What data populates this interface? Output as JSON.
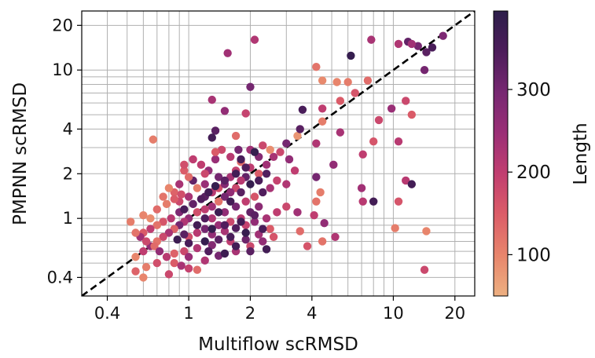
{
  "chart_data": {
    "type": "scatter",
    "xlabel": "Multiflow scRMSD",
    "ylabel": "PMPNN scRMSD",
    "xscale": "log",
    "yscale": "log",
    "xlim": [
      0.3,
      25
    ],
    "ylim": [
      0.3,
      25
    ],
    "grid": true,
    "x_ticks": [
      0.4,
      1,
      2,
      4,
      10,
      20
    ],
    "x_tick_labels": [
      "0.4",
      "1",
      "2",
      "4",
      "10",
      "20"
    ],
    "y_ticks": [
      0.4,
      1,
      2,
      4,
      10,
      20
    ],
    "y_tick_labels": [
      "0.4",
      "1",
      "2",
      "4",
      "10",
      "20"
    ],
    "reference_line": {
      "type": "y=x",
      "style": "dashed",
      "color": "#000000"
    },
    "colorbar": {
      "label": "Length",
      "min": 50,
      "max": 395,
      "ticks": [
        100,
        200,
        300
      ],
      "tick_labels": [
        "100",
        "200",
        "300"
      ],
      "colormap": [
        "#edb081",
        "#e8866c",
        "#db5c68",
        "#c13e70",
        "#9b2f76",
        "#782872",
        "#4c1d5a",
        "#2d1e4a"
      ]
    },
    "points": [
      [
        14.5,
        13.2,
        330
      ],
      [
        11.8,
        15.5,
        320
      ],
      [
        13.2,
        14.5,
        300
      ],
      [
        15.5,
        14.2,
        350
      ],
      [
        17.5,
        17.0,
        290
      ],
      [
        12.3,
        15.0,
        240
      ],
      [
        7.8,
        16.0,
        230
      ],
      [
        10.6,
        15.0,
        220
      ],
      [
        6.2,
        12.5,
        380
      ],
      [
        14.2,
        10.0,
        300
      ],
      [
        2.1,
        16.0,
        220
      ],
      [
        1.55,
        13.0,
        240
      ],
      [
        4.2,
        10.5,
        120
      ],
      [
        4.5,
        8.5,
        95
      ],
      [
        5.3,
        8.3,
        100
      ],
      [
        6.0,
        8.3,
        110
      ],
      [
        7.5,
        8.5,
        130
      ],
      [
        6.5,
        7.0,
        160
      ],
      [
        5.5,
        6.2,
        150
      ],
      [
        4.5,
        5.5,
        200
      ],
      [
        3.6,
        5.4,
        350
      ],
      [
        4.5,
        4.5,
        110
      ],
      [
        5.5,
        3.8,
        230
      ],
      [
        4.2,
        3.2,
        220
      ],
      [
        3.4,
        3.6,
        80
      ],
      [
        11.5,
        6.2,
        180
      ],
      [
        8.5,
        4.6,
        180
      ],
      [
        12.3,
        5.0,
        150
      ],
      [
        10.6,
        3.3,
        210
      ],
      [
        9.8,
        5.5,
        250
      ],
      [
        8.0,
        3.3,
        160
      ],
      [
        2.0,
        7.7,
        300
      ],
      [
        1.5,
        5.3,
        260
      ],
      [
        1.9,
        5.1,
        190
      ],
      [
        1.3,
        6.3,
        230
      ],
      [
        1.7,
        3.6,
        130
      ],
      [
        1.35,
        3.9,
        330
      ],
      [
        1.3,
        3.5,
        360
      ],
      [
        0.67,
        3.4,
        110
      ],
      [
        7.1,
        2.7,
        200
      ],
      [
        5.1,
        2.3,
        260
      ],
      [
        4.2,
        1.9,
        300
      ],
      [
        3.3,
        2.1,
        200
      ],
      [
        3.0,
        1.7,
        220
      ],
      [
        4.4,
        1.5,
        110
      ],
      [
        7.0,
        1.6,
        240
      ],
      [
        8.0,
        1.3,
        360
      ],
      [
        7.1,
        1.3,
        210
      ],
      [
        10.6,
        1.3,
        160
      ],
      [
        11.5,
        1.8,
        210
      ],
      [
        12.3,
        1.7,
        360
      ],
      [
        4.2,
        1.3,
        120
      ],
      [
        3.4,
        1.1,
        240
      ],
      [
        4.1,
        1.05,
        200
      ],
      [
        4.6,
        0.93,
        260
      ],
      [
        10.2,
        0.86,
        110
      ],
      [
        3.5,
        0.82,
        130
      ],
      [
        4.5,
        0.7,
        120
      ],
      [
        3.8,
        0.65,
        160
      ],
      [
        14.5,
        0.82,
        100
      ],
      [
        14.2,
        0.45,
        180
      ],
      [
        5.2,
        0.75,
        220
      ],
      [
        3.5,
        4.0,
        330
      ],
      [
        3.0,
        3.2,
        300
      ],
      [
        2.8,
        2.8,
        180
      ],
      [
        3.1,
        2.5,
        260
      ],
      [
        2.6,
        2.6,
        230
      ],
      [
        2.5,
        2.9,
        90
      ],
      [
        2.2,
        2.6,
        280
      ],
      [
        2.0,
        2.2,
        200
      ],
      [
        2.2,
        2.0,
        150
      ],
      [
        2.4,
        2.3,
        240
      ],
      [
        1.9,
        1.9,
        320
      ],
      [
        1.8,
        1.8,
        210
      ],
      [
        1.7,
        1.6,
        180
      ],
      [
        1.6,
        1.5,
        260
      ],
      [
        1.5,
        1.4,
        300
      ],
      [
        1.4,
        1.3,
        120
      ],
      [
        1.3,
        1.2,
        240
      ],
      [
        1.2,
        1.15,
        200
      ],
      [
        1.1,
        1.1,
        170
      ],
      [
        1.0,
        1.0,
        260
      ],
      [
        0.95,
        0.95,
        220
      ],
      [
        0.9,
        0.9,
        300
      ],
      [
        0.85,
        0.85,
        140
      ],
      [
        0.8,
        0.8,
        230
      ],
      [
        0.75,
        0.75,
        180
      ],
      [
        0.7,
        0.7,
        120
      ],
      [
        0.65,
        0.65,
        260
      ],
      [
        0.6,
        0.6,
        200
      ],
      [
        0.55,
        0.55,
        100
      ],
      [
        1.2,
        1.4,
        330
      ],
      [
        1.3,
        1.5,
        210
      ],
      [
        1.4,
        1.6,
        170
      ],
      [
        1.5,
        1.7,
        280
      ],
      [
        1.6,
        1.9,
        230
      ],
      [
        1.7,
        2.1,
        190
      ],
      [
        1.8,
        2.4,
        130
      ],
      [
        1.4,
        1.9,
        300
      ],
      [
        1.2,
        1.7,
        250
      ],
      [
        1.1,
        1.6,
        110
      ],
      [
        1.0,
        1.4,
        230
      ],
      [
        0.9,
        1.3,
        180
      ],
      [
        0.85,
        1.5,
        140
      ],
      [
        1.05,
        1.8,
        320
      ],
      [
        1.25,
        2.1,
        260
      ],
      [
        1.15,
        2.3,
        200
      ],
      [
        0.95,
        2.1,
        150
      ],
      [
        1.35,
        2.5,
        250
      ],
      [
        1.6,
        2.6,
        210
      ],
      [
        1.45,
        2.9,
        180
      ],
      [
        1.75,
        2.9,
        300
      ],
      [
        2.0,
        2.9,
        240
      ],
      [
        2.3,
        3.1,
        180
      ],
      [
        1.3,
        1.0,
        220
      ],
      [
        1.5,
        1.1,
        260
      ],
      [
        1.7,
        1.2,
        300
      ],
      [
        1.9,
        1.3,
        200
      ],
      [
        2.1,
        1.4,
        160
      ],
      [
        2.3,
        1.5,
        340
      ],
      [
        2.5,
        1.6,
        230
      ],
      [
        2.7,
        1.8,
        190
      ],
      [
        2.2,
        1.2,
        270
      ],
      [
        2.0,
        1.1,
        320
      ],
      [
        1.8,
        1.0,
        210
      ],
      [
        1.6,
        0.95,
        180
      ],
      [
        1.4,
        0.9,
        250
      ],
      [
        1.2,
        0.85,
        300
      ],
      [
        1.1,
        0.8,
        210
      ],
      [
        1.0,
        0.75,
        170
      ],
      [
        1.3,
        0.78,
        260
      ],
      [
        1.5,
        0.82,
        230
      ],
      [
        1.7,
        0.86,
        340
      ],
      [
        1.9,
        0.9,
        190
      ],
      [
        2.1,
        0.95,
        260
      ],
      [
        2.4,
        1.0,
        230
      ],
      [
        2.7,
        1.1,
        200
      ],
      [
        3.0,
        1.2,
        180
      ],
      [
        2.5,
        0.85,
        150
      ],
      [
        2.2,
        0.78,
        240
      ],
      [
        1.9,
        0.72,
        310
      ],
      [
        1.6,
        0.7,
        200
      ],
      [
        1.3,
        0.66,
        280
      ],
      [
        1.1,
        0.63,
        220
      ],
      [
        0.95,
        0.6,
        180
      ],
      [
        0.85,
        0.58,
        140
      ],
      [
        1.0,
        0.55,
        250
      ],
      [
        1.2,
        0.52,
        220
      ],
      [
        1.4,
        0.56,
        300
      ],
      [
        1.7,
        0.6,
        230
      ],
      [
        2.0,
        0.65,
        180
      ],
      [
        2.3,
        0.7,
        260
      ],
      [
        2.6,
        0.75,
        160
      ],
      [
        0.9,
        1.1,
        290
      ],
      [
        0.82,
        1.0,
        210
      ],
      [
        0.75,
        0.95,
        160
      ],
      [
        0.7,
        0.9,
        120
      ],
      [
        0.65,
        0.85,
        200
      ],
      [
        0.6,
        0.8,
        150
      ],
      [
        0.58,
        0.75,
        240
      ],
      [
        0.62,
        0.7,
        180
      ],
      [
        0.68,
        0.65,
        130
      ],
      [
        0.72,
        0.6,
        260
      ],
      [
        0.78,
        0.55,
        210
      ],
      [
        0.85,
        0.5,
        150
      ],
      [
        0.92,
        0.48,
        230
      ],
      [
        1.0,
        0.46,
        190
      ],
      [
        1.1,
        0.45,
        130
      ],
      [
        0.7,
        0.5,
        170
      ],
      [
        0.62,
        0.47,
        110
      ],
      [
        0.55,
        0.44,
        140
      ],
      [
        0.6,
        0.4,
        100
      ],
      [
        0.8,
        0.42,
        180
      ],
      [
        0.65,
        1.0,
        90
      ],
      [
        0.6,
        1.05,
        100
      ],
      [
        0.7,
        1.15,
        130
      ],
      [
        0.78,
        1.25,
        110
      ],
      [
        0.85,
        1.35,
        150
      ],
      [
        0.92,
        1.45,
        170
      ],
      [
        0.75,
        1.4,
        120
      ],
      [
        0.8,
        1.6,
        100
      ],
      [
        0.9,
        1.7,
        230
      ],
      [
        1.0,
        1.9,
        130
      ],
      [
        1.05,
        2.5,
        200
      ],
      [
        1.35,
        2.8,
        150
      ],
      [
        1.2,
        2.0,
        180
      ],
      [
        0.95,
        2.3,
        170
      ],
      [
        0.55,
        0.8,
        120
      ],
      [
        0.52,
        0.95,
        110
      ],
      [
        1.8,
        2.5,
        350
      ],
      [
        2.1,
        2.8,
        380
      ],
      [
        1.9,
        2.2,
        340
      ],
      [
        1.7,
        2.0,
        360
      ],
      [
        1.5,
        1.8,
        330
      ],
      [
        1.35,
        1.65,
        380
      ],
      [
        1.25,
        1.5,
        360
      ],
      [
        1.15,
        1.35,
        340
      ],
      [
        1.05,
        1.25,
        320
      ],
      [
        0.95,
        1.15,
        350
      ],
      [
        1.6,
        1.3,
        360
      ],
      [
        1.8,
        1.5,
        330
      ],
      [
        2.0,
        1.7,
        380
      ],
      [
        2.2,
        1.8,
        350
      ],
      [
        2.4,
        2.0,
        340
      ],
      [
        1.4,
        1.1,
        370
      ],
      [
        1.2,
        1.0,
        340
      ],
      [
        1.1,
        0.9,
        360
      ],
      [
        1.3,
        0.85,
        380
      ],
      [
        1.5,
        0.9,
        340
      ],
      [
        1.8,
        0.95,
        360
      ],
      [
        2.1,
        1.05,
        330
      ],
      [
        1.6,
        0.75,
        350
      ],
      [
        1.9,
        0.8,
        380
      ],
      [
        2.3,
        0.85,
        350
      ],
      [
        1.4,
        0.72,
        330
      ],
      [
        1.2,
        0.7,
        380
      ],
      [
        1.0,
        0.68,
        350
      ],
      [
        0.95,
        0.78,
        330
      ],
      [
        0.88,
        0.72,
        370
      ],
      [
        1.7,
        0.65,
        360
      ],
      [
        2.0,
        0.6,
        330
      ],
      [
        2.4,
        0.62,
        360
      ],
      [
        1.5,
        0.58,
        370
      ],
      [
        1.25,
        0.6,
        340
      ]
    ]
  }
}
